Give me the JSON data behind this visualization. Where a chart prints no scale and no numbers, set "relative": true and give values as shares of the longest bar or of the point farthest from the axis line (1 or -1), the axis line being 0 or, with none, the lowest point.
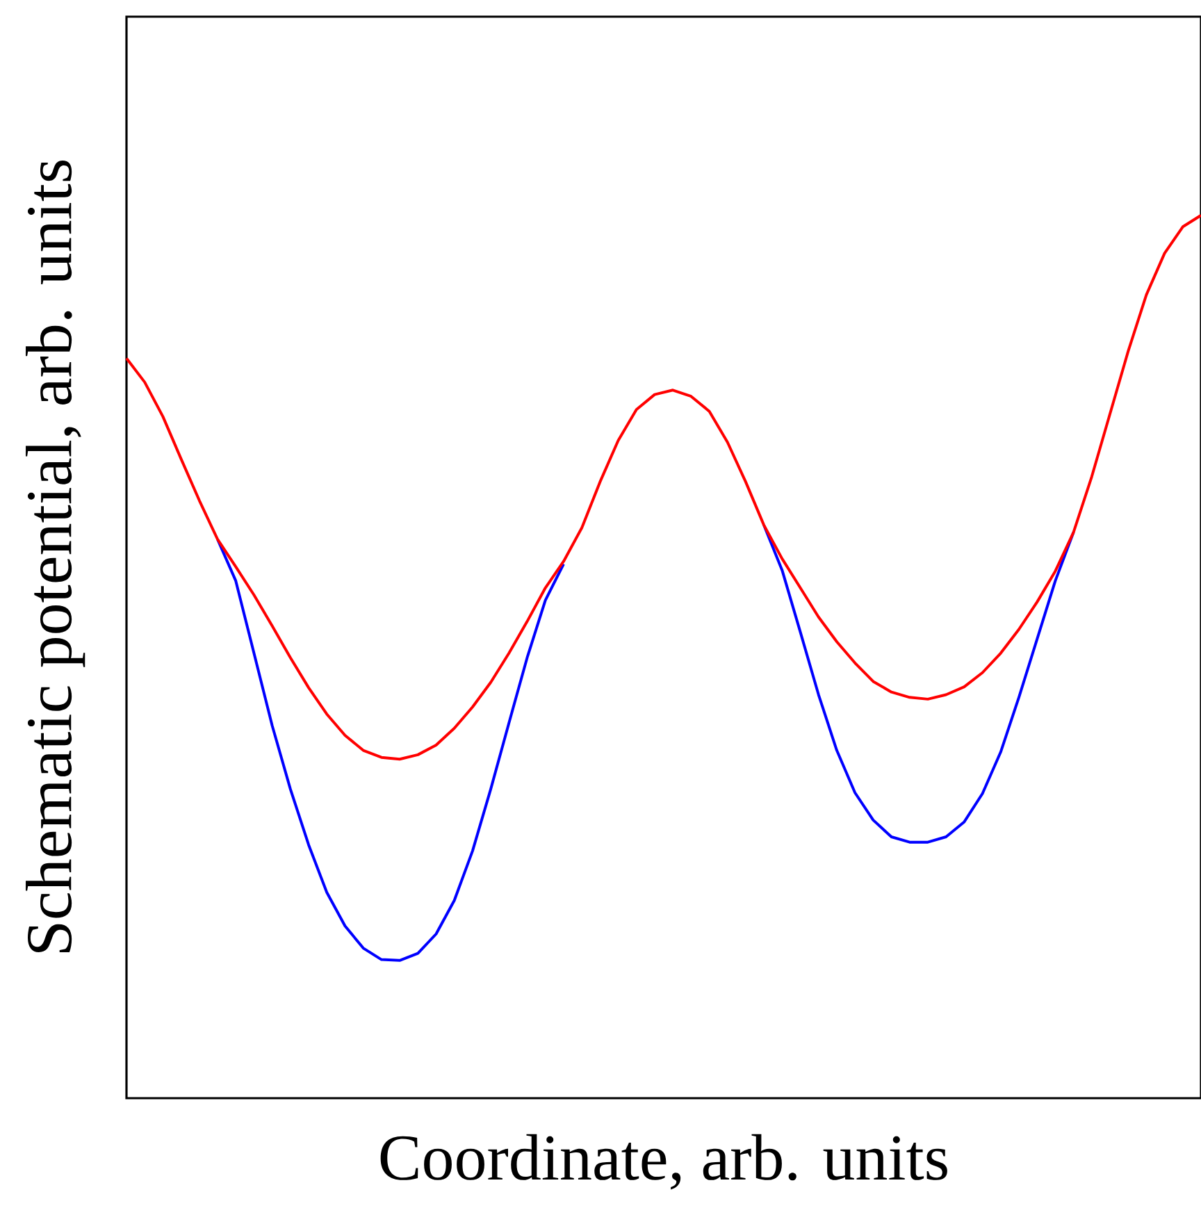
{
  "chart_data": {
    "type": "line",
    "relative": true,
    "xlabel": "Coordinate, arb. units",
    "ylabel": "Schematic potential, arb. units",
    "categories": [
      null,
      null,
      null,
      null,
      null,
      null,
      null,
      null,
      null,
      null,
      null,
      null,
      null,
      null,
      null,
      null,
      null,
      null,
      null,
      null,
      null,
      null,
      null,
      null,
      null,
      null,
      null,
      null,
      null,
      null,
      null,
      null,
      null,
      null,
      null,
      null,
      null,
      null,
      null,
      null,
      null,
      null,
      null,
      null,
      null,
      null,
      null,
      null,
      null,
      null,
      null,
      null,
      null,
      null,
      null,
      null,
      null,
      null,
      null,
      null
    ],
    "series": [
      {
        "color": "#0000ff",
        "values": [
          null,
          null,
          null,
          null,
          null,
          0.633,
          0.586,
          0.504,
          0.422,
          0.35,
          0.287,
          0.233,
          0.195,
          0.17,
          0.157,
          0.156,
          0.164,
          0.186,
          0.224,
          0.28,
          0.35,
          0.425,
          0.499,
          0.564,
          0.605,
          null,
          null,
          null,
          null,
          null,
          null,
          null,
          null,
          null,
          null,
          0.649,
          0.598,
          0.528,
          0.457,
          0.394,
          0.346,
          0.315,
          0.296,
          0.29,
          0.29,
          0.296,
          0.313,
          0.345,
          0.392,
          0.454,
          0.52,
          0.586,
          0.641,
          null,
          null,
          null,
          null,
          null,
          null,
          null
        ]
      },
      {
        "color": "#ff0000",
        "values": [
          0.838,
          0.811,
          0.772,
          0.724,
          0.677,
          0.633,
          0.602,
          0.57,
          0.535,
          0.499,
          0.465,
          0.435,
          0.411,
          0.394,
          0.386,
          0.384,
          0.389,
          0.4,
          0.419,
          0.443,
          0.471,
          0.504,
          0.54,
          0.578,
          0.608,
          0.646,
          0.698,
          0.745,
          0.78,
          0.797,
          0.802,
          0.795,
          0.778,
          0.743,
          0.698,
          0.649,
          0.611,
          0.578,
          0.545,
          0.517,
          0.493,
          0.472,
          0.46,
          0.454,
          0.452,
          0.457,
          0.466,
          0.482,
          0.504,
          0.531,
          0.562,
          0.597,
          0.641,
          0.704,
          0.775,
          0.846,
          0.91,
          0.957,
          0.987,
          1
        ]
      }
    ]
  }
}
